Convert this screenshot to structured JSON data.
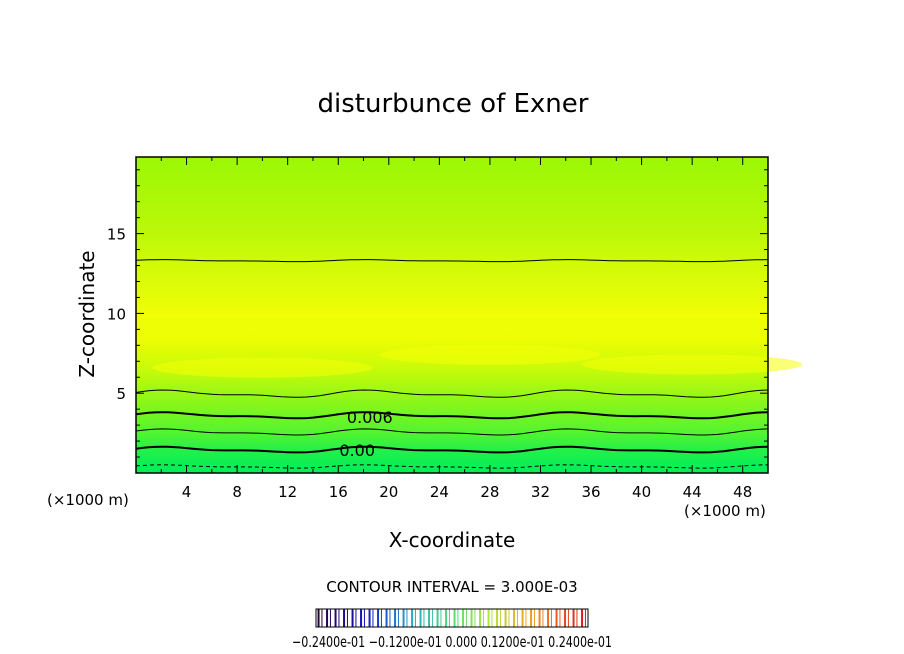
{
  "chart_data": {
    "type": "contour",
    "title": "disturbunce of Exner",
    "xlabel": "X-coordinate",
    "ylabel": "Z-coordinate",
    "x_unit_left": "(×1000 m)",
    "x_unit_right": "(×1000 m)",
    "xlim": [
      0,
      50
    ],
    "ylim": [
      0,
      19.8
    ],
    "x_ticks": [
      "4",
      "8",
      "12",
      "16",
      "20",
      "24",
      "28",
      "32",
      "36",
      "40",
      "44",
      "48"
    ],
    "y_ticks": [
      "5",
      "10",
      "15"
    ],
    "x_tick_values": [
      4,
      8,
      12,
      16,
      20,
      24,
      28,
      32,
      36,
      40,
      44,
      48
    ],
    "y_tick_values": [
      5,
      10,
      15
    ],
    "contour_interval_text": "CONTOUR INTERVAL = 3.000E-03",
    "contour_labels": [
      "0.006",
      "0.00"
    ],
    "colorbar_labels_text": "−0.2400e-01   −0.1200e-01   0.000   0.1200e-01   0.2400e-01",
    "colorbar_range": [
      -0.024,
      0.024
    ],
    "fill_colors": [
      "#00ee55",
      "#22f040",
      "#66f424",
      "#99f80c",
      "#c6fa06",
      "#e2fc04",
      "#f2fe06"
    ]
  }
}
